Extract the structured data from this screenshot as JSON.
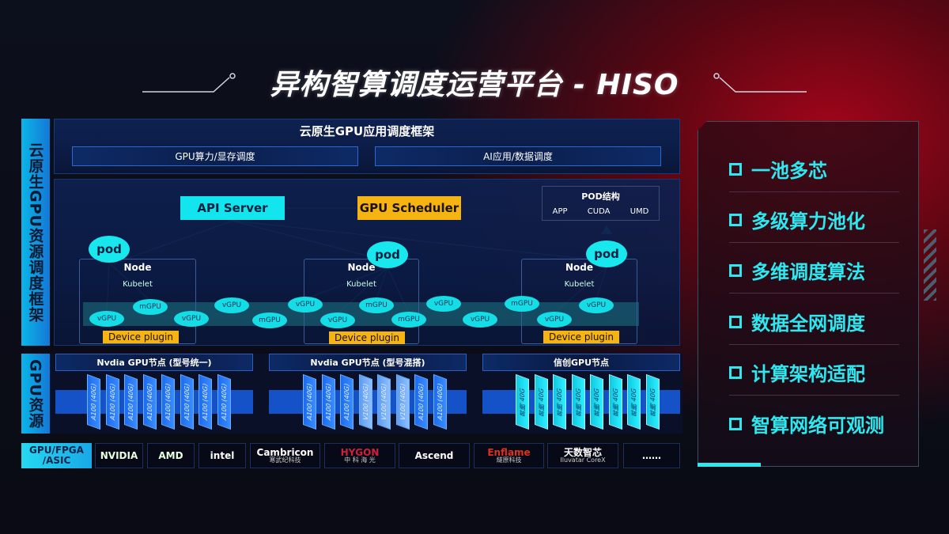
{
  "title": "异构智算调度运营平台 - HISO",
  "side_labels": {
    "framework": "云原生GPU资源调度框架",
    "resources": "GPU资源"
  },
  "framework": {
    "heading": "云原生GPU应用调度框架",
    "sub_boxes": [
      "GPU算力/显存调度",
      "AI应用/数据调度"
    ],
    "api_server": "API Server",
    "gpu_scheduler": "GPU Scheduler",
    "pod_structure": {
      "title": "POD结构",
      "items": [
        "APP",
        "CUDA",
        "UMD"
      ]
    },
    "pod_label": "pod",
    "node_label": "Node",
    "kubelet_label": "Kubelet",
    "device_plugin": "Device plugin",
    "virtual_units": [
      "vGPU",
      "mGPU",
      "vGPU",
      "vGPU",
      "mGPU",
      "vGPU",
      "vGPU",
      "mGPU",
      "mGPU",
      "vGPU",
      "vGPU",
      "mGPU",
      "vGPU",
      "vGPU"
    ]
  },
  "gpu_nodes": [
    {
      "title": "Nvdia GPU节点 (型号统一)",
      "cards": [
        "A100 (40G)",
        "A100 (40G)",
        "A100 (40G)",
        "A100 (40G)",
        "A100 (40G)",
        "A100 (40G)",
        "A100 (40G)",
        "A100 (40G)"
      ]
    },
    {
      "title": "Nvdia GPU节点 (型号混搭)",
      "cards": [
        "A100 (40G)",
        "A100 (40G)",
        "A100 (40G)",
        "V100 (40G)",
        "V100 (40G)",
        "V100 (40G)",
        "A100 (40G)",
        "A100 (40G)"
      ]
    },
    {
      "title": "信创GPU节点",
      "cards": [
        "昇腾 40G",
        "昇腾 40G",
        "昇腾 40G",
        "昇腾 40G",
        "昇腾 40G",
        "昇腾 40G",
        "昇腾 40G",
        "昇腾 40G"
      ]
    }
  ],
  "vendors": {
    "label": "GPU/FPGA /ASIC",
    "items": [
      {
        "name": "NVIDIA",
        "sub": ""
      },
      {
        "name": "AMD",
        "sub": ""
      },
      {
        "name": "intel",
        "sub": ""
      },
      {
        "name": "Cambricon",
        "sub": "寒武纪科技"
      },
      {
        "name": "HYGON",
        "sub": "中 科 海 光"
      },
      {
        "name": "Ascend",
        "sub": ""
      },
      {
        "name": "Enflame",
        "sub": "燧原科技"
      },
      {
        "name": "天数智芯",
        "sub": "Iluvatar CoreX"
      },
      {
        "name": "……",
        "sub": ""
      }
    ]
  },
  "features": [
    "一池多芯",
    "多级算力池化",
    "多维调度算法",
    "数据全网调度",
    "计算架构适配",
    "智算网络可观测"
  ],
  "colors": {
    "cyan": "#12e5ee",
    "yellow": "#f5b412",
    "blue": "#1552c8",
    "red": "#a3051a"
  }
}
